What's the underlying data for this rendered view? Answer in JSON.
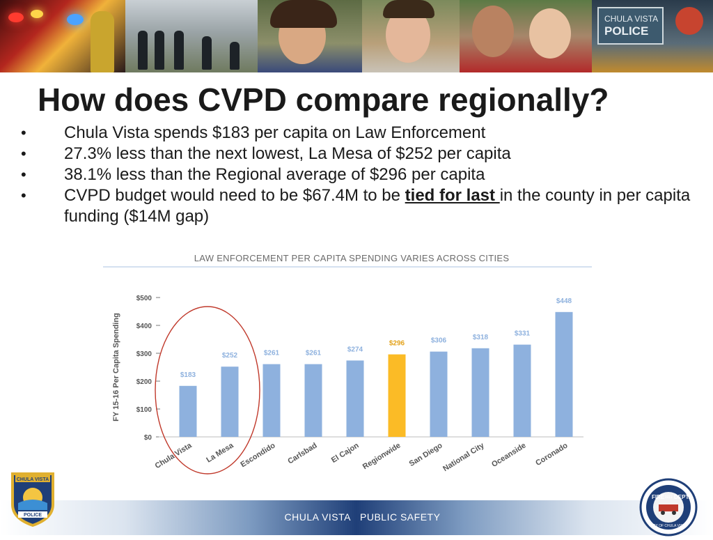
{
  "slide": {
    "title": "How does CVPD compare regionally?",
    "bullets": [
      {
        "text": "Chula Vista spends $183 per capita on Law Enforcement"
      },
      {
        "text": "27.3% less than the next lowest, La Mesa of $252 per capita"
      },
      {
        "text": "38.1% less than the Regional average of $296 per capita"
      },
      {
        "before": "CVPD budget would need to be $67.4M to be ",
        "emphasis": "tied for last ",
        "after": "in the county in per capita funding ($14M gap)"
      }
    ],
    "banner": {
      "sign_line1": "CHULA VISTA",
      "sign_line2": "POLICE"
    },
    "footer": {
      "left": "CHULA VISTA",
      "right": "PUBLIC SAFETY"
    },
    "logos": {
      "police_badge": {
        "top_text": "CHULA VISTA",
        "bottom_text": "POLICE"
      },
      "fire_seal": {
        "left_text": "FIRE",
        "right_text": "DEPT.",
        "year": "1911",
        "bottom_text": "CITY OF CHULA VISTA"
      }
    }
  },
  "chart_data": {
    "type": "bar",
    "title": "LAW ENFORCEMENT PER CAPITA SPENDING VARIES ACROSS CITIES",
    "ylabel": "FY 15-16 Per Capita Spending",
    "xlabel": "",
    "ylim": [
      0,
      500
    ],
    "yticks": [
      "$0",
      "$100",
      "$200",
      "$300",
      "$400",
      "$500"
    ],
    "categories": [
      "Chula Vista",
      "La Mesa",
      "Escondido",
      "Carlsbad",
      "El Cajon",
      "Regionwide",
      "San Diego",
      "National City",
      "Oceanside",
      "Coronado"
    ],
    "values": [
      183,
      252,
      261,
      261,
      274,
      296,
      306,
      318,
      331,
      448
    ],
    "value_labels": [
      "$183",
      "$252",
      "$261",
      "$261",
      "$274",
      "$296",
      "$306",
      "$318",
      "$331",
      "$448"
    ],
    "highlight_index": 5,
    "colors": {
      "bar": "#8eb1de",
      "highlight": "#fbbb26",
      "label": "#8eb1de",
      "highlight_label": "#e3a21a",
      "circle": "#c0392b"
    },
    "annotation": {
      "type": "ellipse",
      "covers": [
        "Chula Vista",
        "La Mesa"
      ]
    },
    "grid": false,
    "legend": "none"
  }
}
